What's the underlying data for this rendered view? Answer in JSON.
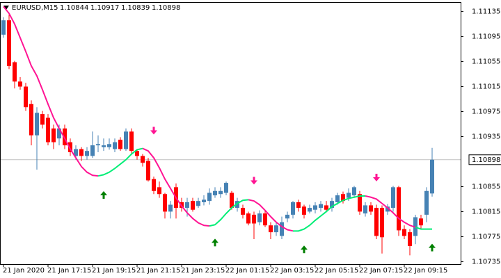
{
  "chart_data": {
    "type": "candlestick",
    "title": "EURUSD,M15",
    "header_ohlc": [
      1.10844,
      1.10917,
      1.10839,
      1.10898
    ],
    "categories": [
      "21 Jan 2020",
      null,
      null,
      null,
      null,
      null,
      null,
      null,
      "21 Jan 17:15",
      null,
      null,
      null,
      null,
      null,
      null,
      null,
      "21 Jan 19:15",
      null,
      null,
      null,
      null,
      null,
      null,
      null,
      "21 Jan 21:15",
      null,
      null,
      null,
      null,
      null,
      null,
      null,
      "21 Jan 23:15",
      null,
      null,
      null,
      null,
      null,
      null,
      null,
      "22 Jan 01:15",
      null,
      null,
      null,
      null,
      null,
      null,
      null,
      "22 Jan 03:15",
      null,
      null,
      null,
      null,
      null,
      null,
      null,
      "22 Jan 05:15",
      null,
      null,
      null,
      null,
      null,
      null,
      null,
      "22 Jan 07:15",
      null,
      null,
      null,
      null,
      null,
      null,
      null,
      "22 Jan 09:15",
      null,
      null,
      null,
      null,
      null
    ],
    "open": [
      1.11098,
      1.11121,
      1.11054,
      1.11023,
      1.11015,
      1.10987,
      1.10937,
      1.10971,
      1.10965,
      1.10948,
      1.10932,
      1.10948,
      1.10926,
      1.10904,
      1.10915,
      1.10904,
      1.10904,
      1.10921,
      1.10918,
      1.10918,
      1.10915,
      1.1093,
      1.10915,
      1.10943,
      1.10912,
      1.10904,
      1.10896,
      1.10867,
      1.10854,
      1.10843,
      1.10815,
      1.10854,
      1.1083,
      1.10821,
      1.10832,
      1.10824,
      1.1083,
      1.10832,
      1.10841,
      1.10843,
      1.10845,
      1.10845,
      1.10821,
      1.10821,
      1.10812,
      1.1081,
      1.10798,
      1.10812,
      1.10793,
      1.10782,
      1.10776,
      1.10804,
      1.1081,
      1.1083,
      1.10823,
      1.10815,
      1.10818,
      1.10821,
      1.10825,
      1.10821,
      1.1083,
      1.10843,
      1.10837,
      1.10841,
      1.10843,
      1.10812,
      1.10825,
      1.10821,
      1.10821,
      1.10815,
      1.10821,
      1.10854,
      1.10787,
      1.10782,
      1.10776,
      1.10804,
      1.1081,
      1.10844
    ],
    "high": [
      1.11126,
      1.1113,
      1.11056,
      1.1103,
      1.11021,
      1.10993,
      1.10982,
      1.10976,
      1.10971,
      1.10954,
      1.10954,
      1.10954,
      1.10932,
      1.10921,
      1.10918,
      1.10918,
      1.10943,
      1.10937,
      1.10932,
      1.10932,
      1.10932,
      1.10934,
      1.10948,
      1.10948,
      1.10915,
      1.10907,
      1.10901,
      1.10871,
      1.10863,
      1.10845,
      1.10832,
      1.1086,
      1.10837,
      1.10837,
      1.10837,
      1.10837,
      1.10841,
      1.10852,
      1.10854,
      1.10854,
      1.10863,
      1.10848,
      1.10837,
      1.10826,
      1.10815,
      1.10815,
      1.10817,
      1.10817,
      1.10798,
      1.10798,
      1.10807,
      1.10815,
      1.10832,
      1.10834,
      1.10826,
      1.10826,
      1.1083,
      1.10832,
      1.10832,
      1.10837,
      1.10845,
      1.10847,
      1.10852,
      1.10856,
      1.10848,
      1.1083,
      1.1083,
      1.10826,
      1.10825,
      1.10827,
      1.10856,
      1.10856,
      1.10793,
      1.10787,
      1.1081,
      1.1081,
      1.10854,
      1.10917
    ],
    "low": [
      1.11093,
      1.11043,
      1.11012,
      1.1101,
      1.10976,
      1.10921,
      1.10882,
      1.10948,
      1.10921,
      1.10915,
      1.10921,
      1.10915,
      1.10904,
      1.10898,
      1.10896,
      1.10898,
      1.10901,
      1.1091,
      1.10912,
      1.10914,
      1.1091,
      1.10912,
      1.10912,
      1.10907,
      1.10898,
      1.10887,
      1.10863,
      1.10843,
      1.10837,
      1.10804,
      1.10804,
      1.10804,
      1.10815,
      1.10807,
      1.10815,
      1.10821,
      1.10825,
      1.10826,
      1.10837,
      1.10837,
      1.10841,
      1.10818,
      1.10815,
      1.10804,
      1.10793,
      1.10771,
      1.10793,
      1.1079,
      1.10771,
      1.10776,
      1.10771,
      1.10798,
      1.10804,
      1.10815,
      1.10804,
      1.10812,
      1.10812,
      1.10815,
      1.10814,
      1.10815,
      1.10826,
      1.10828,
      1.10832,
      1.10837,
      1.1081,
      1.10807,
      1.1081,
      1.10771,
      1.10748,
      1.1081,
      1.10815,
      1.10776,
      1.10771,
      1.10745,
      1.10763,
      1.10787,
      1.10798,
      1.10839
    ],
    "close": [
      1.11121,
      1.11048,
      1.11023,
      1.11015,
      1.10982,
      1.10937,
      1.10973,
      1.10954,
      1.10926,
      1.10926,
      1.10948,
      1.10921,
      1.1091,
      1.10915,
      1.10904,
      1.10912,
      1.10921,
      1.10923,
      1.10921,
      1.10923,
      1.10926,
      1.10915,
      1.10943,
      1.10912,
      1.10904,
      1.10893,
      1.10865,
      1.10848,
      1.10843,
      1.10815,
      1.10826,
      1.10821,
      1.10821,
      1.1083,
      1.10818,
      1.10832,
      1.10834,
      1.10845,
      1.10848,
      1.10848,
      1.10861,
      1.10821,
      1.10832,
      1.1081,
      1.10796,
      1.10796,
      1.10812,
      1.10793,
      1.10782,
      1.10793,
      1.10798,
      1.1081,
      1.1083,
      1.10821,
      1.1081,
      1.10821,
      1.10825,
      1.10827,
      1.10818,
      1.10832,
      1.10841,
      1.10832,
      1.10845,
      1.10854,
      1.10815,
      1.10825,
      1.10815,
      1.10776,
      1.10774,
      1.10823,
      1.10854,
      1.10785,
      1.10776,
      1.1076,
      1.10806,
      1.10793,
      1.10848,
      1.10898
    ],
    "bull_color": "#4682b4",
    "bear_color": "#ff0000",
    "lines": [
      {
        "color": "#ff1493",
        "values": [
          1.11143,
          1.11132,
          1.11115,
          1.11093,
          1.11071,
          1.11048,
          1.11032,
          1.1101,
          1.10987,
          1.10965,
          1.10948,
          1.10932,
          1.10915,
          1.10901,
          1.10887,
          1.10878,
          1.10873,
          1.10872,
          null,
          null,
          null,
          null,
          null,
          null,
          null,
          1.10916,
          1.10912,
          1.10901,
          1.10885,
          1.10867,
          1.10852,
          1.10837,
          1.10824,
          1.10813,
          1.10804,
          1.10797,
          1.10793,
          1.10792,
          null,
          null,
          null,
          null,
          null,
          null,
          1.10834,
          1.10832,
          1.10826,
          1.10817,
          1.10807,
          1.10798,
          1.10791,
          1.10786,
          1.10784,
          null,
          null,
          null,
          null,
          null,
          null,
          null,
          null,
          null,
          null,
          null,
          null,
          1.1084,
          1.10838,
          1.10835,
          1.10828,
          1.10821,
          1.10813,
          1.10804,
          1.10798,
          1.10793,
          1.1079,
          null,
          null,
          null
        ]
      },
      {
        "color": "#00ee76",
        "values": [
          null,
          null,
          null,
          null,
          null,
          null,
          null,
          null,
          null,
          null,
          null,
          null,
          null,
          null,
          null,
          null,
          null,
          1.10872,
          1.10874,
          1.10878,
          1.10884,
          1.10891,
          1.10898,
          1.10907,
          1.10914,
          1.10916,
          null,
          null,
          null,
          null,
          null,
          null,
          null,
          null,
          null,
          null,
          null,
          1.10792,
          1.10794,
          1.10802,
          1.10812,
          1.10821,
          1.10828,
          1.10833,
          1.10834,
          null,
          null,
          null,
          null,
          null,
          null,
          null,
          1.10784,
          1.10784,
          1.10787,
          1.10793,
          1.10801,
          1.10808,
          1.10815,
          1.10823,
          1.10828,
          1.10833,
          1.10836,
          1.10838,
          1.1084,
          1.1084,
          null,
          null,
          null,
          null,
          null,
          null,
          null,
          null,
          1.1079,
          1.10787,
          1.10787,
          1.10787
        ]
      }
    ],
    "buy_arrows": {
      "color": "#008000",
      "values": [
        null,
        null,
        null,
        null,
        null,
        null,
        null,
        null,
        null,
        null,
        null,
        null,
        null,
        null,
        null,
        null,
        null,
        null,
        1.10841,
        null,
        null,
        null,
        null,
        null,
        null,
        null,
        null,
        null,
        null,
        null,
        null,
        null,
        null,
        null,
        null,
        null,
        null,
        null,
        1.10765,
        null,
        null,
        null,
        null,
        null,
        null,
        null,
        null,
        null,
        null,
        null,
        null,
        null,
        null,
        null,
        1.10754,
        null,
        null,
        null,
        null,
        null,
        null,
        null,
        null,
        null,
        null,
        null,
        null,
        null,
        null,
        null,
        null,
        null,
        null,
        null,
        null,
        null,
        null,
        1.10757
      ]
    },
    "sell_arrows": {
      "color": "#ff1493",
      "values": [
        null,
        null,
        null,
        null,
        null,
        null,
        null,
        null,
        null,
        null,
        null,
        null,
        null,
        null,
        null,
        null,
        null,
        null,
        null,
        null,
        null,
        null,
        null,
        null,
        null,
        null,
        null,
        1.10945,
        null,
        null,
        null,
        null,
        null,
        null,
        null,
        null,
        null,
        null,
        null,
        null,
        null,
        null,
        null,
        null,
        null,
        1.10865,
        null,
        null,
        null,
        null,
        null,
        null,
        null,
        null,
        null,
        null,
        null,
        null,
        null,
        null,
        null,
        null,
        null,
        null,
        null,
        null,
        null,
        1.1087,
        null,
        null,
        null,
        null,
        null,
        null,
        null,
        null,
        null,
        null
      ]
    },
    "last_price": 1.10898,
    "ylim": [
      1.10731,
      1.11149
    ],
    "yticks": [
      1.10735,
      1.10775,
      1.10815,
      1.10855,
      1.10935,
      1.10975,
      1.11015,
      1.11055,
      1.11095,
      1.11135
    ]
  }
}
